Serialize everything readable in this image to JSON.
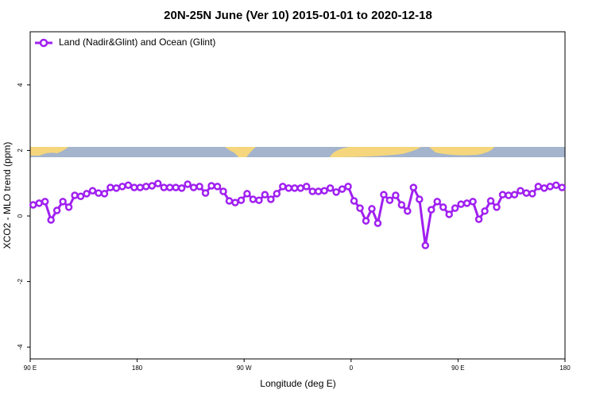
{
  "chart_data": {
    "type": "line",
    "title": "20N-25N June (Ver 10)   2015-01-01 to 2020-12-18",
    "x_label": "Longitude (deg E)",
    "y_label": "XCO2 - MLO trend (ppm)",
    "x": [
      92.5,
      97.5,
      102.5,
      107.5,
      112.5,
      117.5,
      122.5,
      127.5,
      132.5,
      137.5,
      142.5,
      147.5,
      152.5,
      157.5,
      162.5,
      167.5,
      172.5,
      177.5,
      182.5,
      187.5,
      192.5,
      197.5,
      202.5,
      207.5,
      212.5,
      217.5,
      222.5,
      227.5,
      232.5,
      237.5,
      242.5,
      247.5,
      252.5,
      257.5,
      262.5,
      267.5,
      272.5,
      277.5,
      282.5,
      287.5,
      292.5,
      297.5,
      302.5,
      307.5,
      312.5,
      317.5,
      322.5,
      327.5,
      332.5,
      337.5,
      342.5,
      347.5,
      352.5,
      357.5,
      362.5,
      367.5,
      372.5,
      377.5,
      382.5,
      387.5,
      392.5,
      397.5,
      402.5,
      407.5,
      412.5,
      417.5,
      422.5,
      427.5,
      432.5,
      437.5,
      442.5,
      447.5,
      452.5,
      457.5,
      462.5,
      467.5,
      472.5,
      477.5,
      482.5,
      487.5,
      492.5,
      497.5,
      502.5,
      507.5,
      512.5,
      517.5,
      522.5,
      527.5,
      532.5,
      537.5
    ],
    "series": [
      {
        "name": "Land (Nadir&Glint) and Ocean (Glint)",
        "color": "#a020f0",
        "values": [
          0.34,
          0.39,
          0.44,
          -0.12,
          0.17,
          0.44,
          0.27,
          0.63,
          0.6,
          0.68,
          0.77,
          0.7,
          0.68,
          0.87,
          0.85,
          0.9,
          0.94,
          0.87,
          0.87,
          0.9,
          0.92,
          0.99,
          0.87,
          0.87,
          0.87,
          0.85,
          0.97,
          0.87,
          0.9,
          0.7,
          0.92,
          0.9,
          0.75,
          0.46,
          0.41,
          0.48,
          0.68,
          0.51,
          0.48,
          0.65,
          0.51,
          0.68,
          0.9,
          0.85,
          0.85,
          0.85,
          0.9,
          0.75,
          0.75,
          0.77,
          0.85,
          0.73,
          0.82,
          0.9,
          0.46,
          0.24,
          -0.15,
          0.22,
          -0.22,
          0.65,
          0.48,
          0.63,
          0.34,
          0.15,
          0.87,
          0.51,
          -0.9,
          0.19,
          0.44,
          0.27,
          0.05,
          0.24,
          0.36,
          0.39,
          0.44,
          -0.1,
          0.15,
          0.46,
          0.27,
          0.65,
          0.63,
          0.65,
          0.77,
          0.7,
          0.68,
          0.9,
          0.85,
          0.9,
          0.94,
          0.87
        ]
      }
    ],
    "xlim": [
      90,
      540
    ],
    "xticks": [
      {
        "value": 90,
        "label": "90 E"
      },
      180,
      {
        "value": 270,
        "label": "90 W"
      },
      {
        "value": 360,
        "label": "0"
      },
      {
        "value": 450,
        "label": "90 E"
      },
      {
        "value": 540,
        "label": "180"
      }
    ],
    "ylim": [
      -4.36,
      5.62
    ],
    "yticks": [
      -4,
      -2,
      0,
      2,
      4
    ],
    "legend": "top-left"
  }
}
